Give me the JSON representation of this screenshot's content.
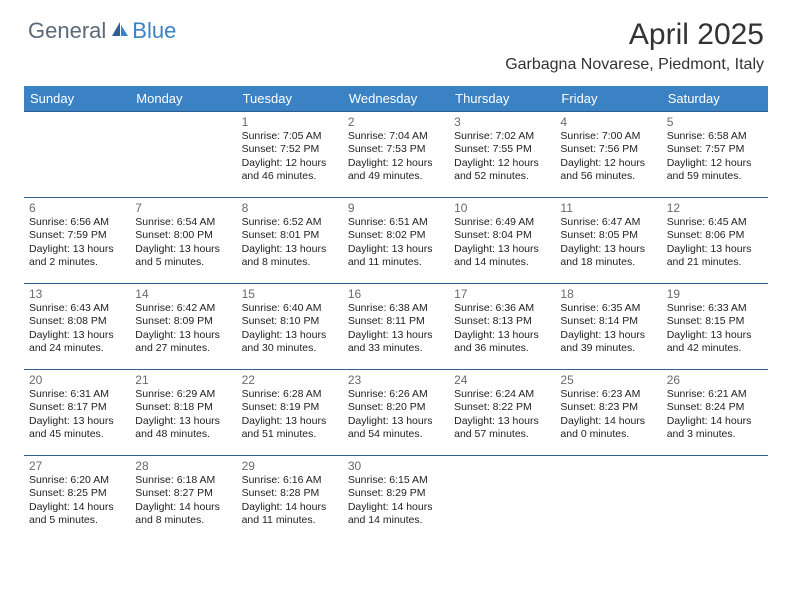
{
  "logo": {
    "part1": "General",
    "part2": "Blue"
  },
  "title": "April 2025",
  "location": "Garbagna Novarese, Piedmont, Italy",
  "colors": {
    "header_bg": "#3a82c4",
    "header_text": "#ffffff",
    "row_border": "#2d5e8f",
    "daynum": "#6a6a6a",
    "body_text": "#222222",
    "logo_gray": "#5a6a78",
    "logo_blue": "#3a82c4",
    "background": "#ffffff"
  },
  "day_headers": [
    "Sunday",
    "Monday",
    "Tuesday",
    "Wednesday",
    "Thursday",
    "Friday",
    "Saturday"
  ],
  "weeks": [
    [
      {
        "n": "",
        "lines": []
      },
      {
        "n": "",
        "lines": []
      },
      {
        "n": "1",
        "lines": [
          "Sunrise: 7:05 AM",
          "Sunset: 7:52 PM",
          "Daylight: 12 hours",
          "and 46 minutes."
        ]
      },
      {
        "n": "2",
        "lines": [
          "Sunrise: 7:04 AM",
          "Sunset: 7:53 PM",
          "Daylight: 12 hours",
          "and 49 minutes."
        ]
      },
      {
        "n": "3",
        "lines": [
          "Sunrise: 7:02 AM",
          "Sunset: 7:55 PM",
          "Daylight: 12 hours",
          "and 52 minutes."
        ]
      },
      {
        "n": "4",
        "lines": [
          "Sunrise: 7:00 AM",
          "Sunset: 7:56 PM",
          "Daylight: 12 hours",
          "and 56 minutes."
        ]
      },
      {
        "n": "5",
        "lines": [
          "Sunrise: 6:58 AM",
          "Sunset: 7:57 PM",
          "Daylight: 12 hours",
          "and 59 minutes."
        ]
      }
    ],
    [
      {
        "n": "6",
        "lines": [
          "Sunrise: 6:56 AM",
          "Sunset: 7:59 PM",
          "Daylight: 13 hours",
          "and 2 minutes."
        ]
      },
      {
        "n": "7",
        "lines": [
          "Sunrise: 6:54 AM",
          "Sunset: 8:00 PM",
          "Daylight: 13 hours",
          "and 5 minutes."
        ]
      },
      {
        "n": "8",
        "lines": [
          "Sunrise: 6:52 AM",
          "Sunset: 8:01 PM",
          "Daylight: 13 hours",
          "and 8 minutes."
        ]
      },
      {
        "n": "9",
        "lines": [
          "Sunrise: 6:51 AM",
          "Sunset: 8:02 PM",
          "Daylight: 13 hours",
          "and 11 minutes."
        ]
      },
      {
        "n": "10",
        "lines": [
          "Sunrise: 6:49 AM",
          "Sunset: 8:04 PM",
          "Daylight: 13 hours",
          "and 14 minutes."
        ]
      },
      {
        "n": "11",
        "lines": [
          "Sunrise: 6:47 AM",
          "Sunset: 8:05 PM",
          "Daylight: 13 hours",
          "and 18 minutes."
        ]
      },
      {
        "n": "12",
        "lines": [
          "Sunrise: 6:45 AM",
          "Sunset: 8:06 PM",
          "Daylight: 13 hours",
          "and 21 minutes."
        ]
      }
    ],
    [
      {
        "n": "13",
        "lines": [
          "Sunrise: 6:43 AM",
          "Sunset: 8:08 PM",
          "Daylight: 13 hours",
          "and 24 minutes."
        ]
      },
      {
        "n": "14",
        "lines": [
          "Sunrise: 6:42 AM",
          "Sunset: 8:09 PM",
          "Daylight: 13 hours",
          "and 27 minutes."
        ]
      },
      {
        "n": "15",
        "lines": [
          "Sunrise: 6:40 AM",
          "Sunset: 8:10 PM",
          "Daylight: 13 hours",
          "and 30 minutes."
        ]
      },
      {
        "n": "16",
        "lines": [
          "Sunrise: 6:38 AM",
          "Sunset: 8:11 PM",
          "Daylight: 13 hours",
          "and 33 minutes."
        ]
      },
      {
        "n": "17",
        "lines": [
          "Sunrise: 6:36 AM",
          "Sunset: 8:13 PM",
          "Daylight: 13 hours",
          "and 36 minutes."
        ]
      },
      {
        "n": "18",
        "lines": [
          "Sunrise: 6:35 AM",
          "Sunset: 8:14 PM",
          "Daylight: 13 hours",
          "and 39 minutes."
        ]
      },
      {
        "n": "19",
        "lines": [
          "Sunrise: 6:33 AM",
          "Sunset: 8:15 PM",
          "Daylight: 13 hours",
          "and 42 minutes."
        ]
      }
    ],
    [
      {
        "n": "20",
        "lines": [
          "Sunrise: 6:31 AM",
          "Sunset: 8:17 PM",
          "Daylight: 13 hours",
          "and 45 minutes."
        ]
      },
      {
        "n": "21",
        "lines": [
          "Sunrise: 6:29 AM",
          "Sunset: 8:18 PM",
          "Daylight: 13 hours",
          "and 48 minutes."
        ]
      },
      {
        "n": "22",
        "lines": [
          "Sunrise: 6:28 AM",
          "Sunset: 8:19 PM",
          "Daylight: 13 hours",
          "and 51 minutes."
        ]
      },
      {
        "n": "23",
        "lines": [
          "Sunrise: 6:26 AM",
          "Sunset: 8:20 PM",
          "Daylight: 13 hours",
          "and 54 minutes."
        ]
      },
      {
        "n": "24",
        "lines": [
          "Sunrise: 6:24 AM",
          "Sunset: 8:22 PM",
          "Daylight: 13 hours",
          "and 57 minutes."
        ]
      },
      {
        "n": "25",
        "lines": [
          "Sunrise: 6:23 AM",
          "Sunset: 8:23 PM",
          "Daylight: 14 hours",
          "and 0 minutes."
        ]
      },
      {
        "n": "26",
        "lines": [
          "Sunrise: 6:21 AM",
          "Sunset: 8:24 PM",
          "Daylight: 14 hours",
          "and 3 minutes."
        ]
      }
    ],
    [
      {
        "n": "27",
        "lines": [
          "Sunrise: 6:20 AM",
          "Sunset: 8:25 PM",
          "Daylight: 14 hours",
          "and 5 minutes."
        ]
      },
      {
        "n": "28",
        "lines": [
          "Sunrise: 6:18 AM",
          "Sunset: 8:27 PM",
          "Daylight: 14 hours",
          "and 8 minutes."
        ]
      },
      {
        "n": "29",
        "lines": [
          "Sunrise: 6:16 AM",
          "Sunset: 8:28 PM",
          "Daylight: 14 hours",
          "and 11 minutes."
        ]
      },
      {
        "n": "30",
        "lines": [
          "Sunrise: 6:15 AM",
          "Sunset: 8:29 PM",
          "Daylight: 14 hours",
          "and 14 minutes."
        ]
      },
      {
        "n": "",
        "lines": []
      },
      {
        "n": "",
        "lines": []
      },
      {
        "n": "",
        "lines": []
      }
    ]
  ]
}
